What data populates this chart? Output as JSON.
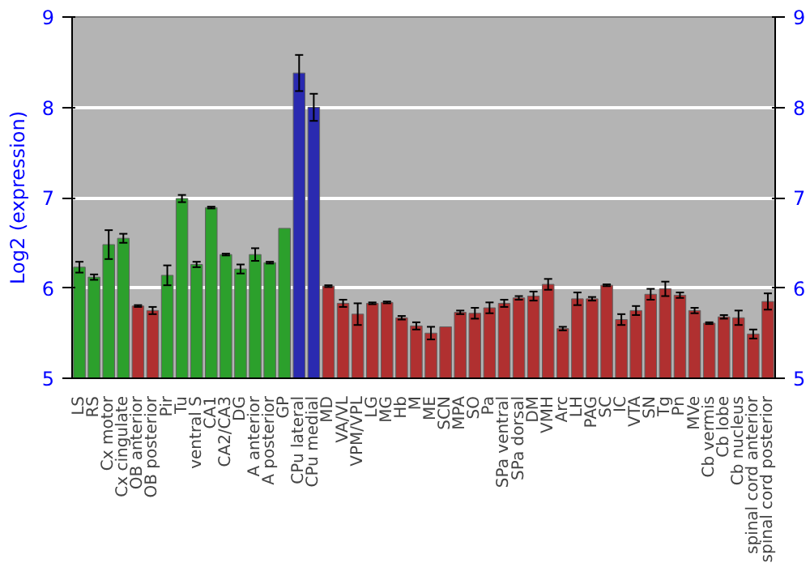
{
  "chart_data": {
    "type": "bar",
    "ylabel": "Log2 (expression)",
    "categories": [
      "LS",
      "RS",
      "Cx motor",
      "Cx cingulate",
      "OB anterior",
      "OB posterior",
      "Pir",
      "Tu",
      "ventral S",
      "CA1",
      "CA2/CA3",
      "DG",
      "A anterior",
      "A posterior",
      "GP",
      "CPu lateral",
      "CPu medial",
      "MD",
      "VA/VL",
      "VPM/VPL",
      "LG",
      "MG",
      "Hb",
      "M",
      "ME",
      "SCN",
      "MPA",
      "SO",
      "Pa",
      "SPa ventral",
      "SPa dorsal",
      "DM",
      "VMH",
      "Arc",
      "LH",
      "PAG",
      "SC",
      "IC",
      "VTA",
      "SN",
      "Tg",
      "Pn",
      "MVe",
      "Cb vermis",
      "Cb lobe",
      "Cb nucleus",
      "spinal cord anterior",
      "spinal cord posterior"
    ],
    "values": [
      6.23,
      6.12,
      6.48,
      6.55,
      5.8,
      5.75,
      6.14,
      6.99,
      6.26,
      6.89,
      6.37,
      6.21,
      6.37,
      6.28,
      6.66,
      8.38,
      8.0,
      6.02,
      5.83,
      5.71,
      5.83,
      5.84,
      5.67,
      5.58,
      5.5,
      5.57,
      5.73,
      5.72,
      5.78,
      5.83,
      5.89,
      5.91,
      6.04,
      5.55,
      5.88,
      5.88,
      6.03,
      5.65,
      5.75,
      5.93,
      5.99,
      5.92,
      5.75,
      5.61,
      5.68,
      5.67,
      5.49,
      5.85
    ],
    "errors": [
      0.06,
      0.03,
      0.16,
      0.05,
      0.01,
      0.04,
      0.11,
      0.04,
      0.03,
      0.01,
      0.01,
      0.05,
      0.07,
      0.01,
      null,
      0.2,
      0.15,
      0.01,
      0.04,
      0.12,
      0.01,
      0.01,
      0.02,
      0.04,
      0.07,
      null,
      0.02,
      0.06,
      0.06,
      0.04,
      0.02,
      0.05,
      0.06,
      0.02,
      0.07,
      0.02,
      0.01,
      0.06,
      0.05,
      0.06,
      0.08,
      0.03,
      0.03,
      0.01,
      0.02,
      0.08,
      0.05,
      0.09
    ],
    "colors": [
      "#2ca02c",
      "#2ca02c",
      "#2ca02c",
      "#2ca02c",
      "#b03030",
      "#b03030",
      "#2ca02c",
      "#2ca02c",
      "#2ca02c",
      "#2ca02c",
      "#2ca02c",
      "#2ca02c",
      "#2ca02c",
      "#2ca02c",
      "#2ca02c",
      "#2a2ab0",
      "#2a2ab0",
      "#b03030",
      "#b03030",
      "#b03030",
      "#b03030",
      "#b03030",
      "#b03030",
      "#b03030",
      "#b03030",
      "#b03030",
      "#b03030",
      "#b03030",
      "#b03030",
      "#b03030",
      "#b03030",
      "#b03030",
      "#b03030",
      "#b03030",
      "#b03030",
      "#b03030",
      "#b03030",
      "#b03030",
      "#b03030",
      "#b03030",
      "#b03030",
      "#b03030",
      "#b03030",
      "#b03030",
      "#b03030",
      "#b03030",
      "#b03030",
      "#b03030"
    ],
    "ylim": [
      5,
      9
    ],
    "yticks": [
      5,
      6,
      7,
      8,
      9
    ],
    "y2lim": [
      5,
      9
    ],
    "y2ticks": [
      5,
      6,
      7,
      8,
      9
    ],
    "grid": "y"
  }
}
